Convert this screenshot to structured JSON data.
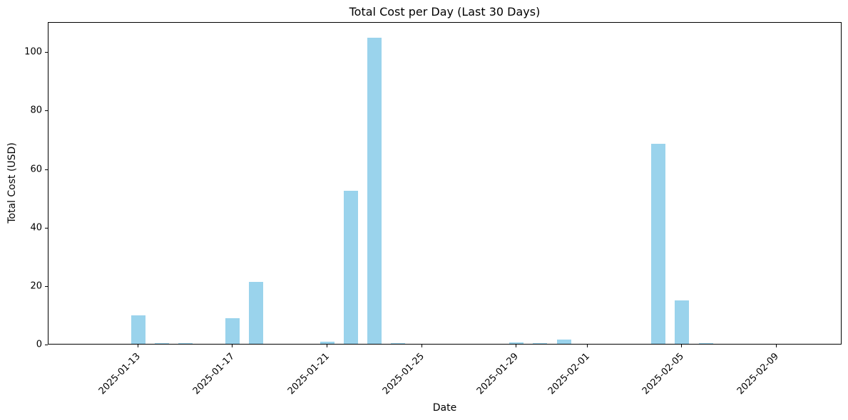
{
  "chart_data": {
    "type": "bar",
    "title": "Total Cost per Day (Last 30 Days)",
    "xlabel": "Date",
    "ylabel": "Total Cost (USD)",
    "categories": [
      "2025-01-13",
      "2025-01-14",
      "2025-01-15",
      "2025-01-16",
      "2025-01-17",
      "2025-01-18",
      "2025-01-19",
      "2025-01-20",
      "2025-01-21",
      "2025-01-22",
      "2025-01-23",
      "2025-01-24",
      "2025-01-25",
      "2025-01-26",
      "2025-01-27",
      "2025-01-28",
      "2025-01-29",
      "2025-01-30",
      "2025-01-31",
      "2025-02-01",
      "2025-02-02",
      "2025-02-03",
      "2025-02-04",
      "2025-02-05",
      "2025-02-06",
      "2025-02-07",
      "2025-02-08",
      "2025-02-09"
    ],
    "values": [
      9.7,
      0.3,
      0.3,
      0,
      8.8,
      21.2,
      0,
      0,
      0.7,
      52.4,
      104.8,
      0.35,
      0,
      0,
      0,
      0,
      0.6,
      0.3,
      1.5,
      0,
      0,
      0,
      68.3,
      14.8,
      0.3,
      0,
      0,
      0
    ],
    "xtick_labels": [
      "2025-01-13",
      "2025-01-17",
      "2025-01-21",
      "2025-01-25",
      "2025-01-29",
      "2025-02-01",
      "2025-02-05",
      "2025-02-09"
    ],
    "ytick_values": [
      0,
      20,
      40,
      60,
      80,
      100
    ],
    "ylim": [
      0,
      110.3
    ],
    "grid": false,
    "legend": "none",
    "bar_color": "#9AD3EC",
    "axis_color": "#000000",
    "text_color": "#000000"
  }
}
